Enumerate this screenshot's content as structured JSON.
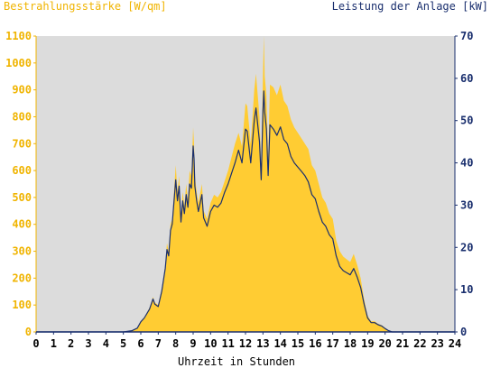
{
  "chart_data": {
    "type": "area",
    "title": "",
    "xlabel": "Uhrzeit in Stunden",
    "y_left_label": "Bestrahlungsstärke [W/qm]",
    "y_right_label": "Leistung der Anlage [kW]",
    "xlim": [
      0,
      24
    ],
    "ylim_left": [
      0,
      1100
    ],
    "ylim_right": [
      0,
      70
    ],
    "grid": false,
    "x_ticks": [
      "0",
      "1",
      "2",
      "3",
      "4",
      "5",
      "6",
      "7",
      "8",
      "9",
      "10",
      "11",
      "12",
      "13",
      "14",
      "15",
      "16",
      "17",
      "18",
      "19",
      "20",
      "21",
      "22",
      "23",
      "24"
    ],
    "y_left_ticks": [
      "0",
      "100",
      "200",
      "300",
      "400",
      "500",
      "600",
      "700",
      "800",
      "900",
      "1000",
      "1100"
    ],
    "y_right_ticks": [
      "0",
      "10",
      "20",
      "30",
      "40",
      "50",
      "60",
      "70"
    ],
    "colors": {
      "plot_bg": "#dcdcdc",
      "irradiance_fill": "#ffcc33",
      "power_line": "#1a2f6e",
      "left_axis_text": "#f0b400",
      "right_axis_text": "#1a2f6e",
      "x_axis_text": "#000000"
    },
    "series": [
      {
        "name": "Bestrahlungsstärke [W/qm]",
        "axis": "left",
        "type": "area",
        "x": [
          0,
          5,
          5.5,
          5.8,
          6.0,
          6.2,
          6.5,
          6.7,
          6.8,
          7.0,
          7.2,
          7.4,
          7.5,
          7.6,
          7.7,
          7.8,
          8.0,
          8.1,
          8.2,
          8.3,
          8.4,
          8.5,
          8.6,
          8.7,
          8.8,
          8.9,
          9.0,
          9.05,
          9.1,
          9.2,
          9.3,
          9.5,
          9.6,
          9.8,
          10.0,
          10.2,
          10.4,
          10.6,
          10.8,
          11.0,
          11.2,
          11.4,
          11.6,
          11.8,
          12.0,
          12.1,
          12.3,
          12.5,
          12.6,
          12.8,
          12.9,
          13.0,
          13.05,
          13.1,
          13.2,
          13.3,
          13.4,
          13.6,
          13.8,
          14.0,
          14.2,
          14.4,
          14.6,
          14.8,
          15.0,
          15.2,
          15.4,
          15.6,
          15.8,
          16.0,
          16.2,
          16.4,
          16.6,
          16.8,
          17.0,
          17.2,
          17.4,
          17.6,
          17.8,
          18.0,
          18.2,
          18.4,
          18.6,
          18.8,
          19.0,
          19.2,
          19.4,
          19.6,
          19.8,
          20.0,
          20.2,
          20.4,
          24
        ],
        "y": [
          0,
          0,
          5,
          15,
          40,
          55,
          90,
          130,
          110,
          100,
          160,
          250,
          330,
          300,
          400,
          420,
          620,
          520,
          580,
          430,
          520,
          470,
          550,
          490,
          600,
          580,
          760,
          700,
          580,
          520,
          480,
          550,
          450,
          420,
          480,
          510,
          500,
          520,
          560,
          600,
          650,
          700,
          740,
          690,
          850,
          840,
          700,
          900,
          960,
          800,
          620,
          950,
          1100,
          950,
          880,
          640,
          920,
          910,
          880,
          920,
          860,
          840,
          790,
          760,
          740,
          720,
          700,
          680,
          620,
          600,
          550,
          500,
          480,
          440,
          420,
          340,
          300,
          280,
          270,
          260,
          290,
          250,
          200,
          120,
          60,
          40,
          40,
          30,
          25,
          15,
          5,
          0,
          0
        ]
      },
      {
        "name": "Leistung der Anlage [kW]",
        "axis": "right",
        "type": "line",
        "x": [
          0,
          5,
          5.5,
          5.8,
          6.0,
          6.2,
          6.5,
          6.7,
          6.8,
          7.0,
          7.2,
          7.4,
          7.5,
          7.6,
          7.7,
          7.8,
          8.0,
          8.1,
          8.2,
          8.3,
          8.4,
          8.5,
          8.6,
          8.7,
          8.8,
          8.9,
          9.0,
          9.05,
          9.1,
          9.2,
          9.3,
          9.5,
          9.6,
          9.8,
          10.0,
          10.2,
          10.4,
          10.6,
          10.8,
          11.0,
          11.2,
          11.4,
          11.6,
          11.8,
          12.0,
          12.1,
          12.3,
          12.5,
          12.6,
          12.8,
          12.9,
          13.0,
          13.05,
          13.1,
          13.2,
          13.3,
          13.4,
          13.6,
          13.8,
          14.0,
          14.2,
          14.4,
          14.6,
          14.8,
          15.0,
          15.2,
          15.4,
          15.6,
          15.8,
          16.0,
          16.2,
          16.4,
          16.6,
          16.8,
          17.0,
          17.2,
          17.4,
          17.6,
          17.8,
          18.0,
          18.2,
          18.4,
          18.6,
          18.8,
          19.0,
          19.2,
          19.4,
          19.6,
          19.8,
          20.0,
          20.2,
          20.4,
          24
        ],
        "y": [
          0,
          0,
          0.3,
          0.9,
          2.4,
          3.3,
          5.4,
          7.8,
          6.6,
          6.0,
          9.6,
          15.0,
          19.5,
          18.0,
          24.0,
          25.5,
          36.0,
          31.0,
          34.5,
          26.0,
          31.0,
          28.0,
          32.5,
          29.5,
          35.0,
          34.0,
          44.0,
          41.0,
          34.5,
          31.0,
          28.5,
          32.5,
          27.0,
          25.0,
          28.5,
          30.0,
          29.5,
          30.5,
          33.0,
          35.0,
          37.5,
          40.0,
          43.0,
          40.0,
          48.0,
          47.5,
          40.0,
          50.0,
          53.0,
          45.0,
          36.0,
          52.0,
          57.0,
          52.0,
          48.0,
          37.0,
          49.0,
          48.0,
          46.5,
          48.5,
          45.5,
          44.5,
          41.5,
          40.0,
          39.0,
          38.0,
          37.0,
          35.5,
          32.5,
          31.5,
          28.5,
          26.0,
          25.0,
          23.0,
          22.0,
          18.0,
          15.5,
          14.5,
          14.0,
          13.5,
          15.0,
          13.0,
          10.5,
          6.5,
          3.3,
          2.2,
          2.2,
          1.7,
          1.4,
          0.8,
          0.3,
          0,
          0
        ]
      }
    ]
  }
}
